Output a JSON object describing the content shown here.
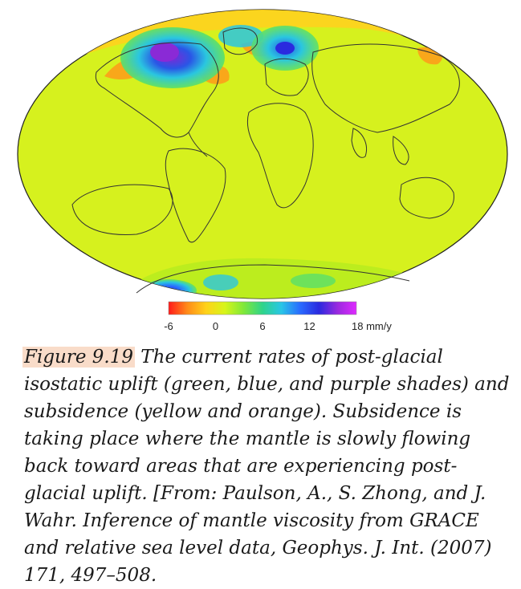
{
  "colorbar": {
    "ticks": [
      "-6",
      "0",
      "6",
      "12",
      "18 mm/y"
    ],
    "tick_values": [
      -6,
      0,
      6,
      12,
      18
    ],
    "range": [
      -6,
      18
    ],
    "unit": "mm/y",
    "colors": [
      "#ff1a1a",
      "#ff8c1a",
      "#ffd21a",
      "#d7f51a",
      "#7fe83a",
      "#2fd48a",
      "#29c6e6",
      "#2a6bff",
      "#2a2adf",
      "#9a2adf",
      "#e02aff"
    ]
  },
  "map": {
    "projection": "elliptical world map",
    "background_color": "#d6f11e",
    "uplift_colors": {
      "strong": "#6a2ad6",
      "high": "#2a55e6",
      "medium": "#2ac6e0",
      "low": "#59df6a"
    },
    "subsidence_colors": {
      "low": "#ffd21e",
      "high": "#ff8c1a"
    }
  },
  "caption": {
    "label": "Figure 9.19",
    "text": " The current rates of post-glacial isostatic uplift (green, blue, and purple shades) and subsidence (yellow and orange). Subsidence is taking place where the mantle is slowly flowing back toward areas that are experiencing post-glacial uplift. [From: Paulson, A., S. Zhong, and J. Wahr. Inference of mantle viscosity from GRACE and relative sea level data, Geophys. J. Int. (2007) 171, 497–508."
  }
}
